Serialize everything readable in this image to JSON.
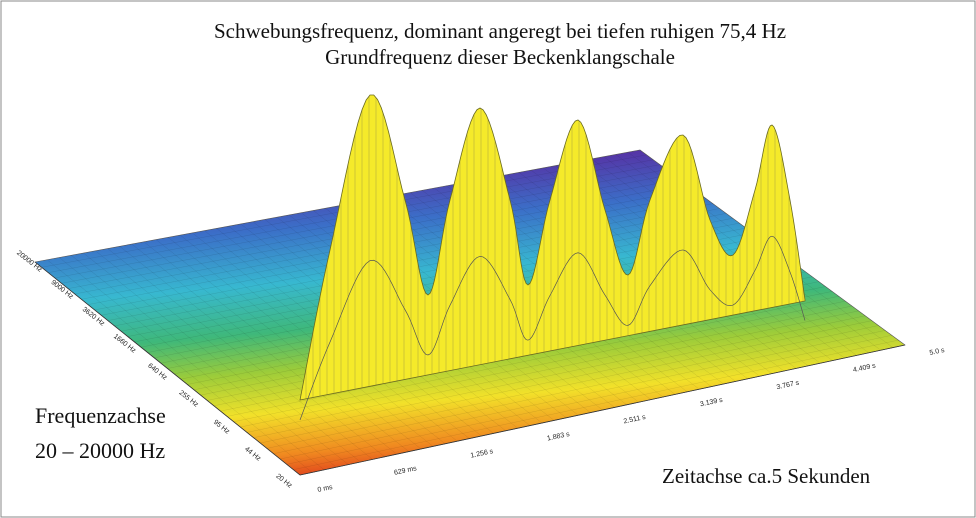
{
  "title": {
    "line1": "Schwebungsfrequenz, dominant angeregt bei tiefen ruhigen 75,4 Hz",
    "line2": "Grundfrequenz dieser Beckenklangschale"
  },
  "frequency_axis": {
    "label_line1": "Frequenzachse",
    "label_line2": "20 – 20000 Hz",
    "ticks": [
      "20000 Hz",
      "9000 Hz",
      "3620 Hz",
      "1660 Hz",
      "640 Hz",
      "255 Hz",
      "95 Hz",
      "44 Hz",
      "20 Hz"
    ]
  },
  "time_axis": {
    "label": "Zeitachse ca.5 Sekunden",
    "ticks": [
      "0 ms",
      "629 ms",
      "1.256 s",
      "1.883 s",
      "2.511 s",
      "3.139 s",
      "3.767 s",
      "4.409 s",
      "5.0 s"
    ]
  }
}
